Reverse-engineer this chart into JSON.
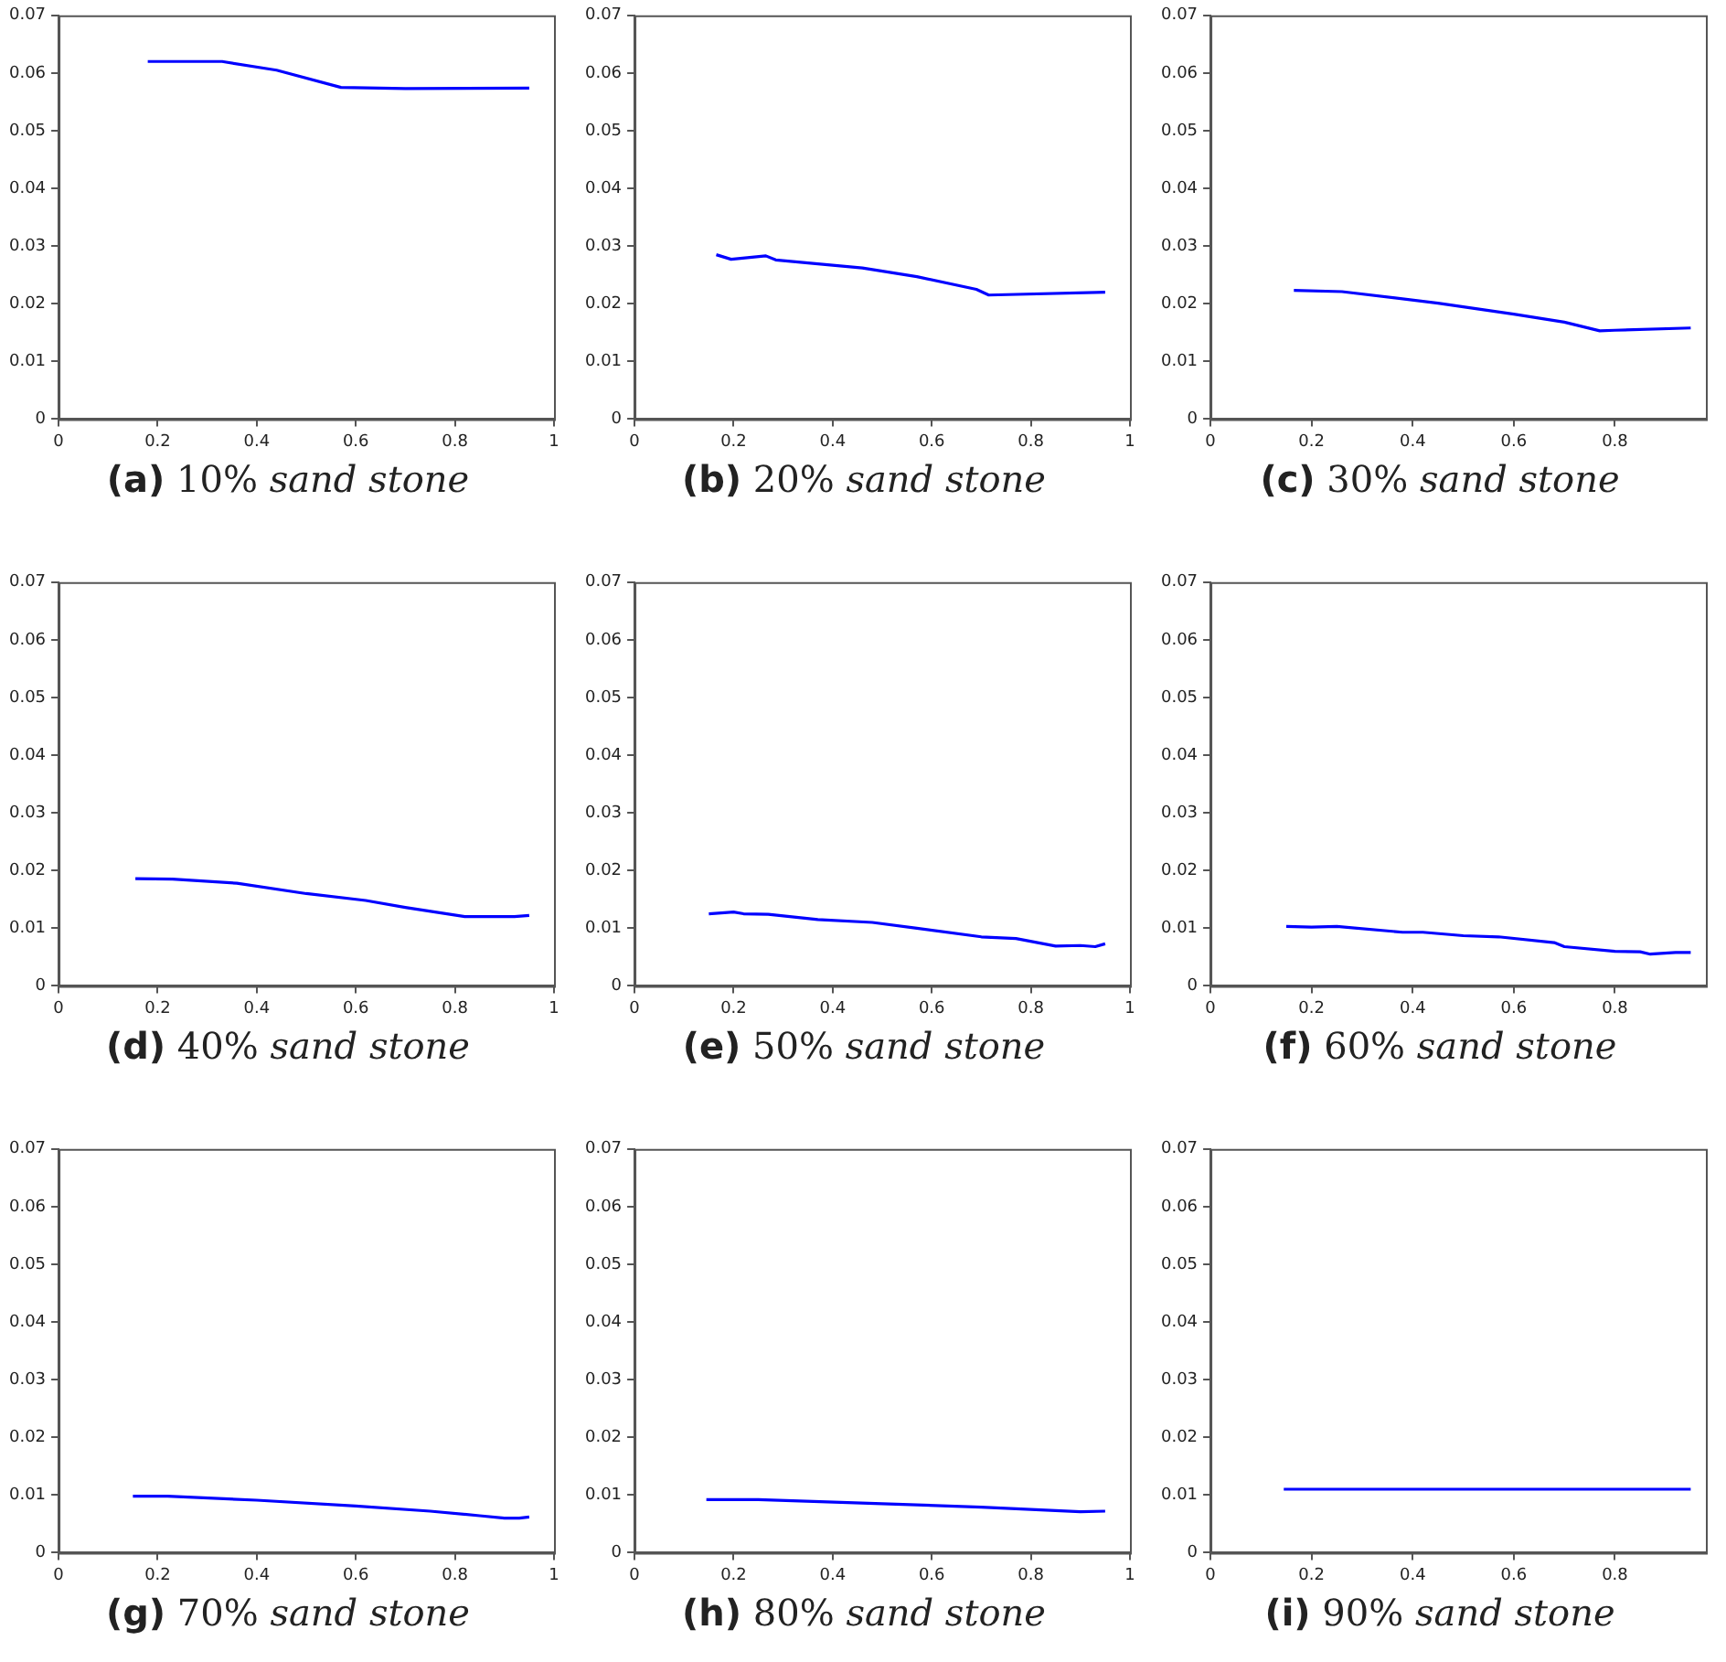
{
  "chart_data": [
    {
      "type": "line",
      "title": "(a) 10% sand stone",
      "x": [
        0.18,
        0.33,
        0.44,
        0.57,
        0.7,
        0.95
      ],
      "series": [
        {
          "color": "#0000ff",
          "values": [
            0.062,
            0.062,
            0.0605,
            0.0575,
            0.0573,
            0.0574
          ]
        }
      ],
      "xlim": [
        0,
        1
      ],
      "xticks": [
        0,
        0.2,
        0.4,
        0.6,
        0.8,
        1
      ],
      "ylim": [
        0,
        0.07
      ],
      "yticks": [
        0,
        0.01,
        0.02,
        0.03,
        0.04,
        0.05,
        0.06,
        0.07
      ]
    },
    {
      "type": "line",
      "title": "(b) 20% sand stone",
      "x": [
        0.165,
        0.195,
        0.265,
        0.285,
        0.46,
        0.57,
        0.69,
        0.715,
        0.95
      ],
      "series": [
        {
          "color": "#0000ff",
          "values": [
            0.0285,
            0.0277,
            0.0283,
            0.0276,
            0.0262,
            0.0247,
            0.0225,
            0.0215,
            0.022
          ]
        }
      ],
      "xlim": [
        0,
        1
      ],
      "xticks": [
        0,
        0.2,
        0.4,
        0.6,
        0.8,
        1
      ],
      "ylim": [
        0,
        0.07
      ],
      "yticks": [
        0,
        0.01,
        0.02,
        0.03,
        0.04,
        0.05,
        0.06,
        0.07
      ]
    },
    {
      "type": "line",
      "title": "(c) 30% sand stone",
      "x": [
        0.165,
        0.26,
        0.45,
        0.6,
        0.7,
        0.77,
        0.8,
        0.95
      ],
      "series": [
        {
          "color": "#0000ff",
          "values": [
            0.0223,
            0.0221,
            0.0201,
            0.0182,
            0.0168,
            0.0153,
            0.0154,
            0.0158
          ]
        }
      ],
      "xlim": [
        0,
        0.98
      ],
      "xticks": [
        0,
        0.2,
        0.4,
        0.6,
        0.8
      ],
      "ylim": [
        0,
        0.07
      ],
      "yticks": [
        0,
        0.01,
        0.02,
        0.03,
        0.04,
        0.05,
        0.06,
        0.07
      ]
    },
    {
      "type": "line",
      "title": "(d) 40% sand stone",
      "x": [
        0.155,
        0.23,
        0.36,
        0.5,
        0.62,
        0.7,
        0.82,
        0.92,
        0.95
      ],
      "series": [
        {
          "color": "#0000ff",
          "values": [
            0.0186,
            0.0185,
            0.0178,
            0.016,
            0.0148,
            0.0136,
            0.012,
            0.012,
            0.0122
          ]
        }
      ],
      "xlim": [
        0,
        1
      ],
      "xticks": [
        0,
        0.2,
        0.4,
        0.6,
        0.8,
        1
      ],
      "ylim": [
        0,
        0.07
      ],
      "yticks": [
        0,
        0.01,
        0.02,
        0.03,
        0.04,
        0.05,
        0.06,
        0.07
      ]
    },
    {
      "type": "line",
      "title": "(e) 50% sand stone",
      "x": [
        0.15,
        0.2,
        0.22,
        0.27,
        0.37,
        0.48,
        0.57,
        0.7,
        0.77,
        0.85,
        0.9,
        0.93,
        0.95
      ],
      "series": [
        {
          "color": "#0000ff",
          "values": [
            0.0125,
            0.0128,
            0.0125,
            0.0124,
            0.0115,
            0.011,
            0.01,
            0.0085,
            0.0082,
            0.0069,
            0.007,
            0.0068,
            0.0073
          ]
        }
      ],
      "xlim": [
        0,
        1
      ],
      "xticks": [
        0,
        0.2,
        0.4,
        0.6,
        0.8,
        1
      ],
      "ylim": [
        0,
        0.07
      ],
      "yticks": [
        0,
        0.01,
        0.02,
        0.03,
        0.04,
        0.05,
        0.06,
        0.07
      ]
    },
    {
      "type": "line",
      "title": "(f) 60% sand stone",
      "x": [
        0.15,
        0.2,
        0.25,
        0.38,
        0.42,
        0.5,
        0.57,
        0.68,
        0.7,
        0.8,
        0.85,
        0.87,
        0.92,
        0.95
      ],
      "series": [
        {
          "color": "#0000ff",
          "values": [
            0.0103,
            0.0102,
            0.0103,
            0.0093,
            0.0093,
            0.0087,
            0.0085,
            0.0075,
            0.0068,
            0.006,
            0.0059,
            0.0055,
            0.0058,
            0.0058
          ]
        }
      ],
      "xlim": [
        0,
        0.98
      ],
      "xticks": [
        0,
        0.2,
        0.4,
        0.6,
        0.8
      ],
      "ylim": [
        0,
        0.07
      ],
      "yticks": [
        0,
        0.01,
        0.02,
        0.03,
        0.04,
        0.05,
        0.06,
        0.07
      ]
    },
    {
      "type": "line",
      "title": "(g) 70% sand stone",
      "x": [
        0.15,
        0.22,
        0.4,
        0.6,
        0.75,
        0.85,
        0.9,
        0.93,
        0.95
      ],
      "series": [
        {
          "color": "#0000ff",
          "values": [
            0.0098,
            0.0098,
            0.0091,
            0.0081,
            0.0072,
            0.0064,
            0.006,
            0.006,
            0.0062
          ]
        }
      ],
      "xlim": [
        0,
        1
      ],
      "xticks": [
        0,
        0.2,
        0.4,
        0.6,
        0.8,
        1
      ],
      "ylim": [
        0,
        0.07
      ],
      "yticks": [
        0,
        0.01,
        0.02,
        0.03,
        0.04,
        0.05,
        0.06,
        0.07
      ]
    },
    {
      "type": "line",
      "title": "(h) 80% sand stone",
      "x": [
        0.145,
        0.25,
        0.5,
        0.7,
        0.9,
        0.95
      ],
      "series": [
        {
          "color": "#0000ff",
          "values": [
            0.0092,
            0.0092,
            0.0085,
            0.0079,
            0.0071,
            0.0072
          ]
        }
      ],
      "xlim": [
        0,
        1
      ],
      "xticks": [
        0,
        0.2,
        0.4,
        0.6,
        0.8,
        1
      ],
      "ylim": [
        0,
        0.07
      ],
      "yticks": [
        0,
        0.01,
        0.02,
        0.03,
        0.04,
        0.05,
        0.06,
        0.07
      ]
    },
    {
      "type": "line",
      "title": "(i) 90% sand stone",
      "x": [
        0.145,
        0.95
      ],
      "series": [
        {
          "color": "#0000ff",
          "values": [
            0.011,
            0.011
          ]
        }
      ],
      "xlim": [
        0,
        0.98
      ],
      "xticks": [
        0,
        0.2,
        0.4,
        0.6,
        0.8
      ],
      "ylim": [
        0,
        0.07
      ],
      "yticks": [
        0,
        0.01,
        0.02,
        0.03,
        0.04,
        0.05,
        0.06,
        0.07
      ]
    }
  ]
}
